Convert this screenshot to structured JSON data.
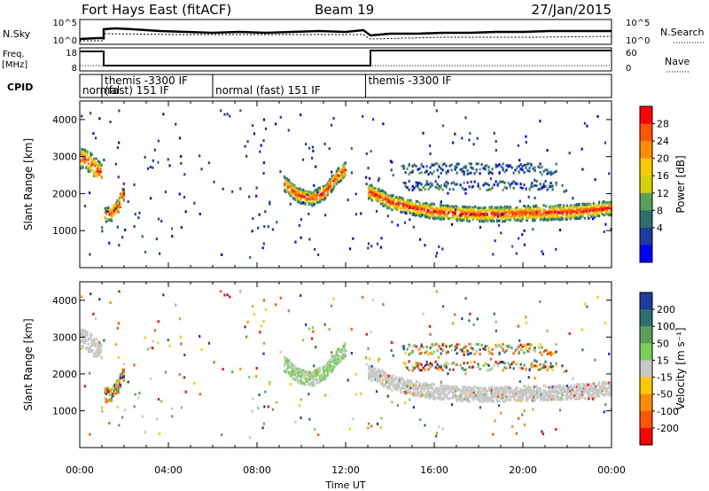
{
  "header": {
    "station": "Fort Hays East (fitACF)",
    "beam": "Beam 19",
    "date": "27/Jan/2015"
  },
  "aux": {
    "nsky_label": "N.Sky",
    "nsearch_label": "N.Search",
    "nsky_ticks": [
      "10^5",
      "10^0"
    ],
    "nsearch_ticks": [
      "10^5",
      "10^0"
    ],
    "freq_label_1": "Freq.",
    "freq_label_2": "[MHz]",
    "freq_ticks": [
      "18",
      "8"
    ],
    "nave_label": "Nave",
    "nave_ticks": [
      "60",
      "0"
    ],
    "cpid_label": "CPID",
    "cpid_segments": [
      {
        "label": "normal",
        "start": 0.0,
        "end": 1.0,
        "row": 1
      },
      {
        "label": "themis -3300 IF",
        "start": 1.0,
        "end": 6.0,
        "row": 0
      },
      {
        "label": "(fast) 151 IF",
        "start": 1.0,
        "end": 6.0,
        "row": 1
      },
      {
        "label": "normal (fast) 151 IF",
        "start": 6.0,
        "end": 12.9,
        "row": 1
      },
      {
        "label": "themis -3300 IF",
        "start": 12.9,
        "end": 24.0,
        "row": 0
      }
    ]
  },
  "chart_data": [
    {
      "type": "heatmap",
      "name": "power",
      "ylabel": "Slant Range [km]",
      "ylim": [
        0,
        4500
      ],
      "yticks": [
        1000,
        2000,
        3000,
        4000
      ],
      "xlim": [
        0,
        24
      ],
      "colorbar": {
        "label": "Power [dB]",
        "ticks": [
          "28",
          "24",
          "20",
          "16",
          "12",
          "8",
          "4"
        ],
        "colors": [
          "#ff0000",
          "#ff5500",
          "#ff8c00",
          "#ffc800",
          "#d2d200",
          "#5aa05a",
          "#2d6e6e",
          "#1e3ca0",
          "#0000ff"
        ]
      },
      "features": [
        {
          "x": [
            0.0,
            0.3,
            0.6,
            0.9,
            1.0
          ],
          "y": [
            3000,
            2950,
            2750,
            2600,
            2550
          ],
          "w": 350
        },
        {
          "x": [
            1.1,
            1.4,
            1.7,
            2.0
          ],
          "y": [
            1450,
            1500,
            1700,
            2100
          ],
          "w": 250
        },
        {
          "x": [
            9.2,
            9.8,
            10.4,
            11.0,
            11.6,
            12.0
          ],
          "y": [
            2300,
            2000,
            1900,
            2050,
            2500,
            2700
          ],
          "w": 250
        },
        {
          "x": [
            13.0,
            14.0,
            15.0,
            16.0,
            17.0,
            18.0,
            19.0,
            20.0,
            21.0,
            22.0,
            23.0,
            24.0
          ],
          "y": [
            2100,
            1800,
            1650,
            1550,
            1500,
            1480,
            1480,
            1500,
            1520,
            1530,
            1580,
            1650
          ],
          "w": 250
        }
      ]
    },
    {
      "type": "heatmap",
      "name": "velocity",
      "ylabel": "Slant Range [km]",
      "xlabel": "Time UT",
      "ylim": [
        0,
        4500
      ],
      "yticks": [
        1000,
        2000,
        3000,
        4000
      ],
      "xlim": [
        0,
        24
      ],
      "xtick_labels": [
        "00:00",
        "04:00",
        "08:00",
        "12:00",
        "16:00",
        "20:00",
        "00:00"
      ],
      "colorbar": {
        "label": "Velocity [m s⁻¹]",
        "ticks": [
          "200",
          "100",
          "50",
          "15",
          "-15",
          "-50",
          "-100",
          "-200"
        ],
        "colors": [
          "#1e3ca0",
          "#2d6e6e",
          "#5aa05a",
          "#7ad05a",
          "#c8c8c8",
          "#ffc800",
          "#ff8c00",
          "#ff5500",
          "#ff0000"
        ]
      }
    }
  ]
}
